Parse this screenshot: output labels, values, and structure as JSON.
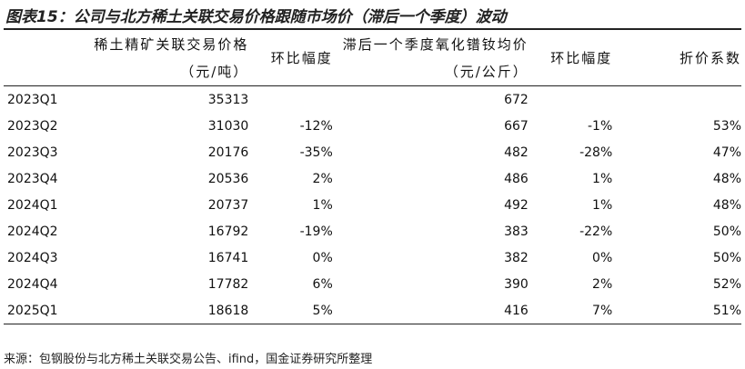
{
  "title": "图表15：公司与北方稀土关联交易价格跟随市场价（滞后一个季度）波动",
  "table": {
    "headers": [
      null,
      "稀土精矿关联交易价格（元/吨）",
      "环比幅度",
      "滞后一个季度氧化镨钕均价（元/公斤）",
      "环比幅度",
      "折价系数"
    ],
    "rows": [
      [
        "2023Q1",
        "35313",
        null,
        "672",
        null,
        null
      ],
      [
        "2023Q2",
        "31030",
        "-12%",
        "667",
        "-1%",
        "53%"
      ],
      [
        "2023Q3",
        "20176",
        "-35%",
        "482",
        "-28%",
        "47%"
      ],
      [
        "2023Q4",
        "20536",
        "2%",
        "486",
        "1%",
        "48%"
      ],
      [
        "2024Q1",
        "20737",
        "1%",
        "492",
        "1%",
        "48%"
      ],
      [
        "2024Q2",
        "16792",
        "-19%",
        "383",
        "-22%",
        "50%"
      ],
      [
        "2024Q3",
        "16741",
        "0%",
        "382",
        "0%",
        "50%"
      ],
      [
        "2024Q4",
        "17782",
        "6%",
        "390",
        "2%",
        "52%"
      ],
      [
        "2025Q1",
        "18618",
        "5%",
        "416",
        "7%",
        "51%"
      ]
    ]
  },
  "source": "来源：包钢股份与北方稀土关联交易公告、ifind，国金证券研究所整理"
}
